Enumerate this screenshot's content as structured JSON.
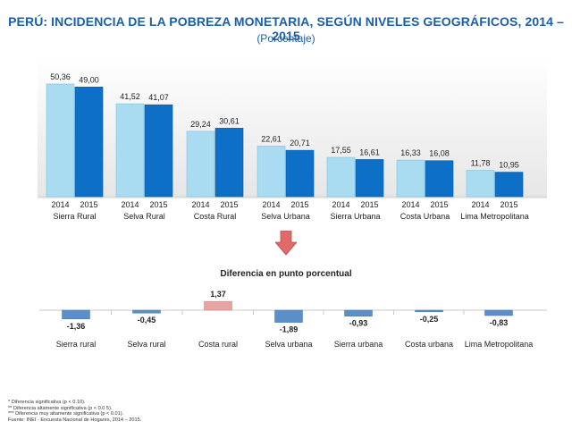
{
  "header": {
    "title": "PERÚ: INCIDENCIA DE LA POBREZA MONETARIA, SEGÚN NIVELES GEOGRÁFICOS, 2014 – 2015",
    "subtitle": "(Porcentaje)"
  },
  "diff_title": "Diferencia en punto porcentual",
  "colors": {
    "bar2014": "#a9dcf0",
    "bar2015": "#0d6fc6",
    "neg": "#5b8fc9",
    "pos": "#e8a3a3",
    "arrow": "#e06a6a",
    "title": "#1b5fa8"
  },
  "chart_data": [
    {
      "type": "bar",
      "categories": [
        "Sierra Rural",
        "Selva Rural",
        "Costa Rural",
        "Selva Urbana",
        "Sierra Urbana",
        "Costa Urbana",
        "Lima Metropolitana"
      ],
      "series": [
        {
          "name": "2014",
          "values": [
            50.36,
            41.52,
            29.24,
            22.61,
            17.55,
            16.33,
            11.78
          ],
          "labels": [
            "50,36",
            "41,52",
            "29,24",
            "22,61",
            "17,55",
            "16,33",
            "11,78"
          ]
        },
        {
          "name": "2015",
          "values": [
            49.0,
            41.07,
            30.61,
            20.71,
            16.61,
            16.08,
            10.95
          ],
          "labels": [
            "49,00",
            "41,07",
            "30,61",
            "20,71",
            "16,61",
            "16,08",
            "10,95"
          ]
        }
      ],
      "ylim": [
        0,
        55
      ]
    },
    {
      "type": "bar",
      "title": "Diferencia en punto porcentual",
      "categories": [
        "Sierra rural",
        "Selva rural",
        "Costa rural",
        "Selva urbana",
        "Sierra urbana",
        "Costa urbana",
        "Lima Metropolitana"
      ],
      "values": [
        -1.36,
        -0.45,
        1.37,
        -1.89,
        -0.93,
        -0.25,
        -0.83
      ],
      "labels": [
        "-1,36",
        "-0,45",
        "1,37",
        "-1,89",
        "-0,93",
        "-0,25",
        "-0,83"
      ],
      "ylim": [
        -2,
        2
      ]
    }
  ],
  "footnotes": [
    "* Diferencia significativa (p < 0.10).",
    "** Diferencia altamente significativa (p < 0.0 5).",
    "*** Diferencia muy altamente significativa (p < 0.01).",
    "Fuente: INEI - Encuesta Nacional de Hogares, 2014 – 2015."
  ]
}
